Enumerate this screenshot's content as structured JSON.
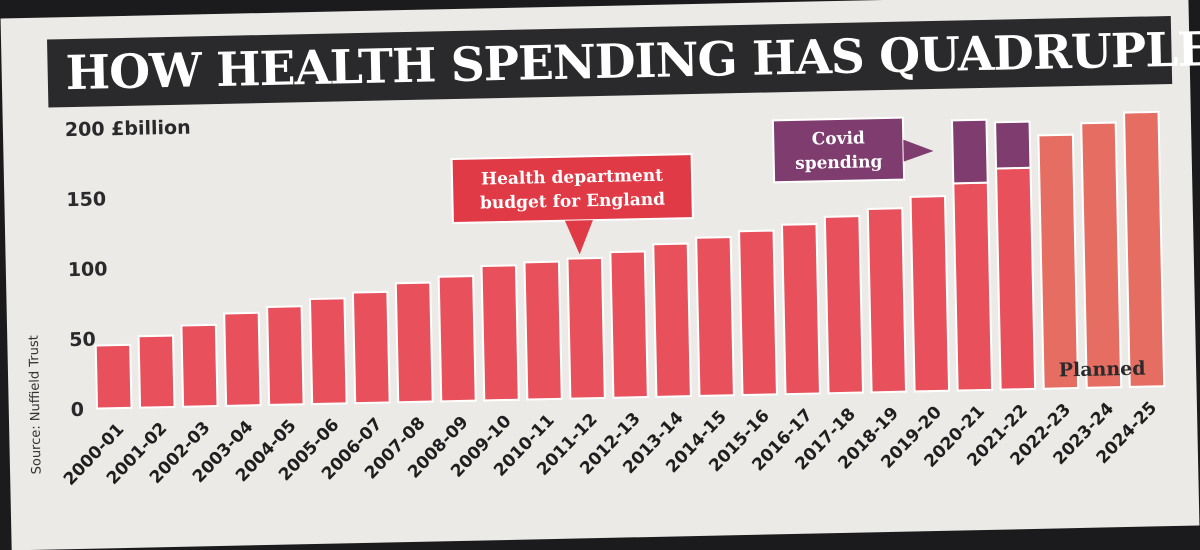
{
  "chart_data": {
    "type": "bar",
    "title": "HOW HEALTH SPENDING HAS QUADRUPLED",
    "ylabel": "£billion",
    "y_top_label": "200 £billion",
    "yticks": [
      0,
      50,
      100,
      150,
      200
    ],
    "ylim": [
      0,
      200
    ],
    "categories": [
      "2000-01",
      "2001-02",
      "2002-03",
      "2003-04",
      "2004-05",
      "2005-06",
      "2006-07",
      "2007-08",
      "2008-09",
      "2009-10",
      "2010-11",
      "2011-12",
      "2012-13",
      "2013-14",
      "2014-15",
      "2015-16",
      "2016-17",
      "2017-18",
      "2018-19",
      "2019-20",
      "2020-21",
      "2021-22",
      "2022-23",
      "2023-24",
      "2024-25"
    ],
    "series": [
      {
        "name": "Health department budget for England",
        "color": "#e8505b",
        "values": [
          45,
          51,
          58,
          66,
          70,
          75,
          79,
          85,
          89,
          96,
          98,
          100,
          104,
          109,
          113,
          117,
          121,
          126,
          131,
          139,
          148,
          158,
          0,
          0,
          0
        ]
      },
      {
        "name": "Covid spending",
        "color": "#7e3d6e",
        "values": [
          0,
          0,
          0,
          0,
          0,
          0,
          0,
          0,
          0,
          0,
          0,
          0,
          0,
          0,
          0,
          0,
          0,
          0,
          0,
          0,
          45,
          33,
          0,
          0,
          0
        ]
      },
      {
        "name": "Planned",
        "color": "#e56d62",
        "values": [
          0,
          0,
          0,
          0,
          0,
          0,
          0,
          0,
          0,
          0,
          0,
          0,
          0,
          0,
          0,
          0,
          0,
          0,
          0,
          0,
          0,
          0,
          181,
          189,
          196
        ]
      }
    ],
    "annotations": {
      "budget_line1": "Health department",
      "budget_line2": "budget for England",
      "covid_line1": "Covid",
      "covid_line2": "spending",
      "planned": "Planned"
    },
    "source": "Source: Nuffield Trust",
    "grid": false,
    "colors": {
      "banner": "#2a2a2c",
      "budget_callout": "#e03a46",
      "covid_callout": "#7e3d6e",
      "bar_stroke": "#ffffff"
    }
  }
}
